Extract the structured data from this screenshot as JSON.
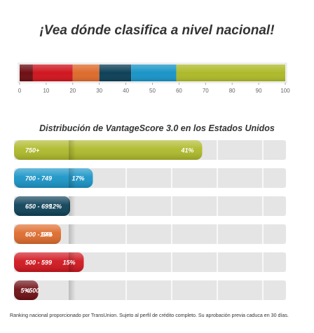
{
  "headline": "¡Vea dónde clasifica a nivel nacional!",
  "footnote": "Ranking nacional proporcionado por TransUnion. Sujeto al perfil de crédito completo. Su aprobación previa caduca en 30 días.",
  "colors": {
    "dark_red": "#6e0f14",
    "red": "#d0161f",
    "orange": "#de6b2c",
    "dark_teal": "#0e4158",
    "blue": "#1a95c7",
    "yellow_green": "#aeba2a",
    "track": "#e5e5e5"
  },
  "chart_data": [
    {
      "type": "bar",
      "orientation": "horizontal",
      "stacked": true,
      "xlim": [
        0,
        100
      ],
      "ticks": [
        "0",
        "10",
        "20",
        "30",
        "40",
        "50",
        "60",
        "70",
        "80",
        "90",
        "100"
      ],
      "segments": [
        {
          "value": 5,
          "color": "#6e0f14"
        },
        {
          "value": 15,
          "color": "#d0161f"
        },
        {
          "value": 10,
          "color": "#de6b2c"
        },
        {
          "value": 12,
          "color": "#0e4158"
        },
        {
          "value": 17,
          "color": "#1a95c7"
        },
        {
          "value": 41,
          "color": "#aeba2a"
        }
      ]
    },
    {
      "type": "bar",
      "orientation": "horizontal",
      "title": "Distribución de VantageScore 3.0 en los Estados Unidos",
      "categories": [
        "750+",
        "700 - 749",
        "650 - 699",
        "600 - 649",
        "500 - 599",
        "<500"
      ],
      "values": [
        41,
        17,
        12,
        10,
        15,
        5
      ],
      "labels": [
        "41%",
        "17%",
        "12%",
        "10%",
        "15%",
        "5%"
      ],
      "colors": [
        "#aeba2a",
        "#1a95c7",
        "#0e4158",
        "#de6b2c",
        "#d0161f",
        "#6e0f14"
      ],
      "xlim": [
        0,
        60
      ]
    }
  ]
}
